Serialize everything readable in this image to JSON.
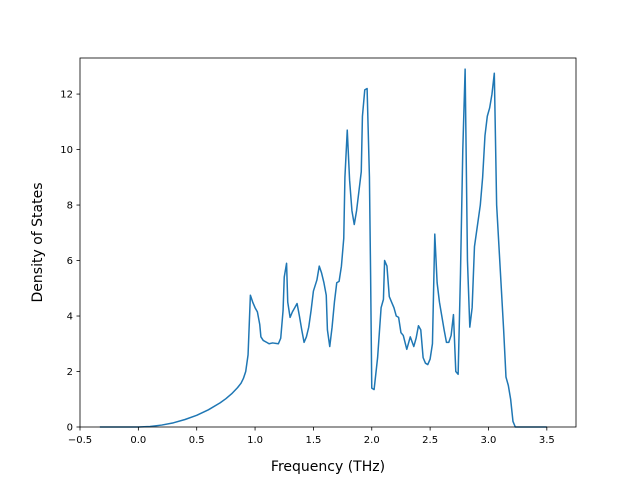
{
  "chart_data": {
    "type": "line",
    "title": "",
    "xlabel": "Frequency (THz)",
    "ylabel": "Density of States",
    "xlim": [
      -0.5,
      3.75
    ],
    "ylim": [
      0,
      13.3
    ],
    "xticks": [
      -0.5,
      0.0,
      0.5,
      1.0,
      1.5,
      2.0,
      2.5,
      3.0,
      3.5
    ],
    "xtick_labels": [
      "−0.5",
      "0.0",
      "0.5",
      "1.0",
      "1.5",
      "2.0",
      "2.5",
      "3.0",
      "3.5"
    ],
    "yticks": [
      0,
      2,
      4,
      6,
      8,
      10,
      12
    ],
    "ytick_labels": [
      "0",
      "2",
      "4",
      "6",
      "8",
      "10",
      "12"
    ],
    "grid": false,
    "legend": "none",
    "series": [
      {
        "color": "#1f77b4",
        "points": [
          [
            -0.33,
            0.0
          ],
          [
            0.0,
            0.0
          ],
          [
            0.1,
            0.02
          ],
          [
            0.2,
            0.07
          ],
          [
            0.3,
            0.15
          ],
          [
            0.4,
            0.27
          ],
          [
            0.5,
            0.42
          ],
          [
            0.6,
            0.62
          ],
          [
            0.7,
            0.87
          ],
          [
            0.75,
            1.02
          ],
          [
            0.8,
            1.2
          ],
          [
            0.85,
            1.42
          ],
          [
            0.88,
            1.58
          ],
          [
            0.9,
            1.75
          ],
          [
            0.92,
            2.0
          ],
          [
            0.94,
            2.6
          ],
          [
            0.96,
            4.75
          ],
          [
            0.98,
            4.5
          ],
          [
            1.0,
            4.3
          ],
          [
            1.02,
            4.15
          ],
          [
            1.04,
            3.7
          ],
          [
            1.05,
            3.25
          ],
          [
            1.07,
            3.12
          ],
          [
            1.1,
            3.05
          ],
          [
            1.12,
            3.0
          ],
          [
            1.15,
            3.03
          ],
          [
            1.2,
            3.0
          ],
          [
            1.22,
            3.2
          ],
          [
            1.24,
            4.2
          ],
          [
            1.25,
            5.4
          ],
          [
            1.27,
            5.9
          ],
          [
            1.28,
            4.5
          ],
          [
            1.3,
            3.95
          ],
          [
            1.32,
            4.15
          ],
          [
            1.34,
            4.3
          ],
          [
            1.36,
            4.45
          ],
          [
            1.38,
            4.0
          ],
          [
            1.4,
            3.5
          ],
          [
            1.42,
            3.05
          ],
          [
            1.44,
            3.25
          ],
          [
            1.46,
            3.6
          ],
          [
            1.48,
            4.2
          ],
          [
            1.5,
            4.9
          ],
          [
            1.53,
            5.3
          ],
          [
            1.55,
            5.8
          ],
          [
            1.57,
            5.55
          ],
          [
            1.59,
            5.2
          ],
          [
            1.61,
            4.75
          ],
          [
            1.62,
            3.5
          ],
          [
            1.64,
            2.9
          ],
          [
            1.66,
            3.6
          ],
          [
            1.68,
            4.5
          ],
          [
            1.7,
            5.2
          ],
          [
            1.72,
            5.25
          ],
          [
            1.74,
            5.8
          ],
          [
            1.76,
            6.8
          ],
          [
            1.77,
            9.0
          ],
          [
            1.79,
            10.7
          ],
          [
            1.81,
            8.9
          ],
          [
            1.83,
            7.8
          ],
          [
            1.85,
            7.3
          ],
          [
            1.87,
            7.8
          ],
          [
            1.89,
            8.5
          ],
          [
            1.91,
            9.2
          ],
          [
            1.92,
            11.2
          ],
          [
            1.94,
            12.15
          ],
          [
            1.96,
            12.2
          ],
          [
            1.98,
            9.0
          ],
          [
            1.99,
            5.5
          ],
          [
            2.0,
            1.4
          ],
          [
            2.02,
            1.35
          ],
          [
            2.05,
            2.5
          ],
          [
            2.08,
            4.3
          ],
          [
            2.1,
            4.6
          ],
          [
            2.11,
            6.0
          ],
          [
            2.13,
            5.8
          ],
          [
            2.15,
            4.7
          ],
          [
            2.17,
            4.5
          ],
          [
            2.19,
            4.3
          ],
          [
            2.21,
            4.0
          ],
          [
            2.23,
            3.95
          ],
          [
            2.25,
            3.4
          ],
          [
            2.27,
            3.3
          ],
          [
            2.3,
            2.8
          ],
          [
            2.33,
            3.25
          ],
          [
            2.36,
            2.9
          ],
          [
            2.38,
            3.2
          ],
          [
            2.4,
            3.65
          ],
          [
            2.42,
            3.5
          ],
          [
            2.44,
            2.5
          ],
          [
            2.46,
            2.3
          ],
          [
            2.48,
            2.25
          ],
          [
            2.5,
            2.45
          ],
          [
            2.52,
            3.0
          ],
          [
            2.54,
            6.95
          ],
          [
            2.56,
            5.2
          ],
          [
            2.58,
            4.5
          ],
          [
            2.6,
            4.0
          ],
          [
            2.62,
            3.5
          ],
          [
            2.64,
            3.05
          ],
          [
            2.66,
            3.05
          ],
          [
            2.68,
            3.3
          ],
          [
            2.7,
            4.05
          ],
          [
            2.72,
            2.0
          ],
          [
            2.74,
            1.9
          ],
          [
            2.76,
            5.5
          ],
          [
            2.78,
            10.0
          ],
          [
            2.8,
            12.9
          ],
          [
            2.82,
            6.0
          ],
          [
            2.84,
            3.6
          ],
          [
            2.86,
            4.3
          ],
          [
            2.88,
            6.5
          ],
          [
            2.9,
            7.1
          ],
          [
            2.93,
            8.0
          ],
          [
            2.95,
            9.0
          ],
          [
            2.97,
            10.5
          ],
          [
            2.99,
            11.2
          ],
          [
            3.01,
            11.5
          ],
          [
            3.03,
            12.0
          ],
          [
            3.05,
            12.75
          ],
          [
            3.07,
            8.0
          ],
          [
            3.09,
            6.5
          ],
          [
            3.11,
            5.0
          ],
          [
            3.13,
            3.5
          ],
          [
            3.15,
            1.8
          ],
          [
            3.17,
            1.5
          ],
          [
            3.19,
            1.0
          ],
          [
            3.21,
            0.2
          ],
          [
            3.23,
            0.0
          ],
          [
            3.5,
            0.0
          ]
        ]
      }
    ]
  }
}
